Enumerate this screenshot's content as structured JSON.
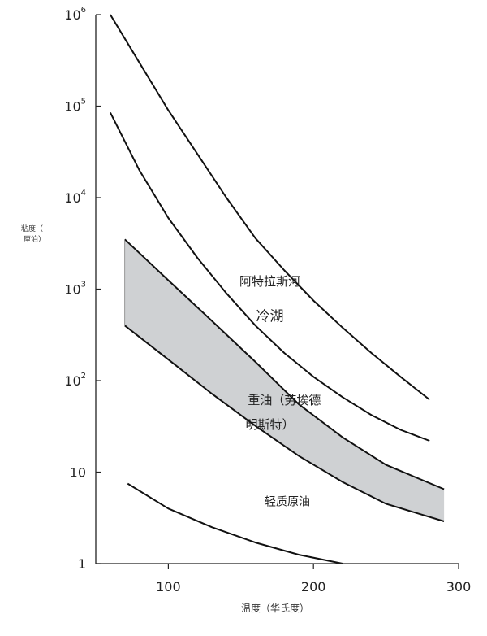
{
  "chart_data": {
    "type": "line",
    "ylabel_line1": "粘度（",
    "ylabel_line2": "厘泊）",
    "xlabel": "温度（华氏度）",
    "x_scale": "linear",
    "y_scale": "log",
    "xlim": [
      50,
      300
    ],
    "ylim": [
      1,
      1000000
    ],
    "x_ticks": [
      100,
      200,
      300
    ],
    "x_tick_labels": [
      "100",
      "200",
      "300"
    ],
    "y_ticks": [
      1,
      10,
      100,
      1000,
      10000,
      100000,
      1000000
    ],
    "y_tick_labels": [
      {
        "base": "1",
        "exp": ""
      },
      {
        "base": "10",
        "exp": ""
      },
      {
        "base": "10",
        "exp": "2"
      },
      {
        "base": "10",
        "exp": "3"
      },
      {
        "base": "10",
        "exp": "4"
      },
      {
        "base": "10",
        "exp": "5"
      },
      {
        "base": "10",
        "exp": "6"
      }
    ],
    "series": [
      {
        "name": "阿特拉斯河",
        "x": [
          60,
          80,
          100,
          120,
          140,
          160,
          180,
          200,
          220,
          240,
          260,
          280
        ],
        "y": [
          1000000,
          300000,
          90000,
          30000,
          10000,
          3600,
          1600,
          750,
          380,
          200,
          110,
          62
        ]
      },
      {
        "name": "冷湖",
        "x": [
          60,
          80,
          100,
          120,
          140,
          160,
          180,
          200,
          220,
          240,
          260,
          280
        ],
        "y": [
          85000,
          20000,
          6000,
          2200,
          900,
          400,
          200,
          110,
          66,
          42,
          29,
          22
        ]
      },
      {
        "name": "轻质原油",
        "x": [
          72,
          100,
          130,
          160,
          190,
          220
        ],
        "y": [
          7.5,
          4.0,
          2.5,
          1.7,
          1.25,
          1.0
        ]
      }
    ],
    "bands": [
      {
        "name": "重油（劳埃德明斯特）",
        "x": [
          70,
          100,
          130,
          160,
          190,
          220,
          250,
          290
        ],
        "upper": [
          3500,
          1250,
          450,
          160,
          55,
          24,
          12,
          6.5
        ],
        "lower": [
          400,
          170,
          72,
          32,
          15,
          7.8,
          4.5,
          2.9
        ]
      }
    ],
    "annotations": [
      {
        "text": "阿特拉斯河",
        "x": 170,
        "y": 1100
      },
      {
        "text": "冷湖",
        "x": 170,
        "y": 450
      },
      {
        "text": "重油（劳埃德",
        "x": 180,
        "y": 55
      },
      {
        "text": "明斯特）",
        "x": 170,
        "y": 30
      },
      {
        "text": "轻质原油",
        "x": 182,
        "y": 4.3
      }
    ],
    "grid": false,
    "legend": "none"
  }
}
